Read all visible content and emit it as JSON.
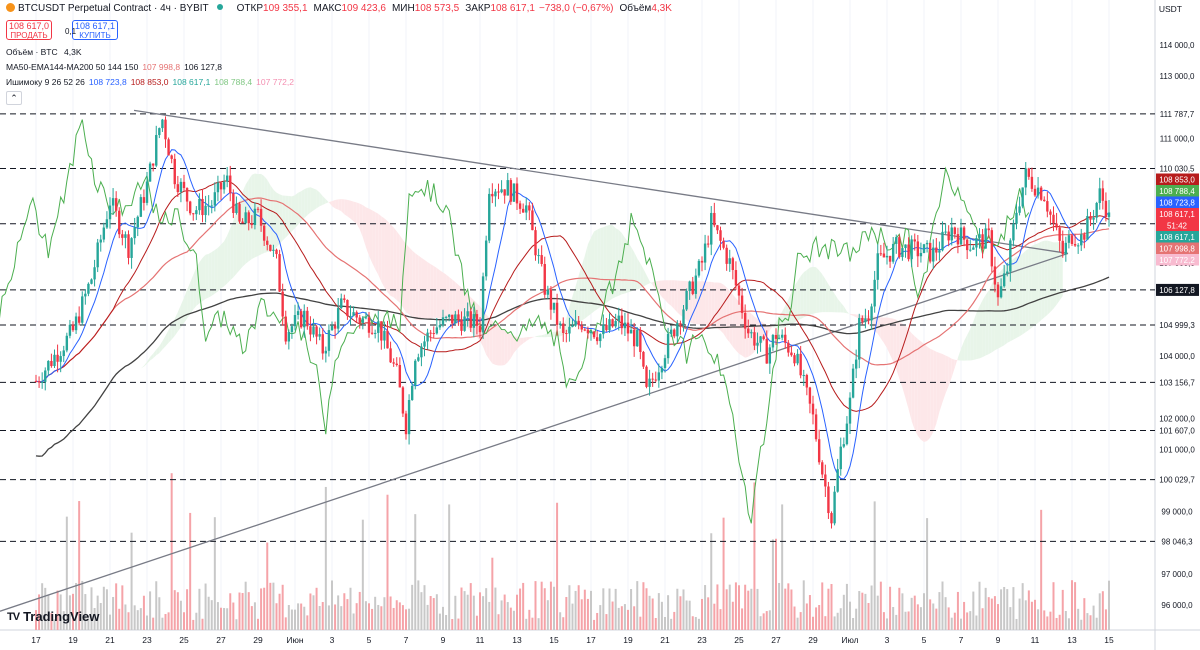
{
  "header": {
    "title": "BTCUSDT Perpetual Contract · 4ч · BYBIT",
    "open_label": "ОТКР",
    "open": "109 355,1",
    "high_label": "МАКС",
    "high": "109 423,6",
    "low_label": "МИН",
    "low": "108 573,5",
    "close_label": "ЗАКР",
    "close": "108 617,1",
    "change": "−738,0 (−0,67%)",
    "volume_label": "Объём",
    "volume": "4,3K"
  },
  "trade": {
    "sell_price": "108 617,0",
    "sell_label": "ПРОДАТЬ",
    "spread": "0,1",
    "buy_price": "108 617,1",
    "buy_label": "КУПИТЬ"
  },
  "indicators": {
    "volume_legend": "Объём · BTC",
    "volume_value": "4,3K",
    "ma_legend": "MA50-EMA144-MA200 50 144 150",
    "ma_v1": "107 998,8",
    "ma_v2": "106 127,8",
    "ichimoku_legend": "Ишимоку 9 26 52 26",
    "ich_v1": "108 723,8",
    "ich_v2": "108 853,0",
    "ich_v3": "108 617,1",
    "ich_v4": "108 788,4",
    "ich_v5": "107 772,2"
  },
  "currency": "USDT",
  "logo_text": "TradingView",
  "colors": {
    "up": "#26a69a",
    "down": "#f23645",
    "kumo_up": "#e8f5e9",
    "kumo_down": "#fde7e9",
    "ma50": "#e57373",
    "ma200": "#424242",
    "tenkan": "#2962ff",
    "kijun": "#b71c1c",
    "chikou": "#4caf50"
  },
  "chart_data": {
    "type": "candlestick",
    "timeframe": "4ч",
    "x_tick_labels": [
      "17",
      "19",
      "21",
      "23",
      "25",
      "27",
      "29",
      "Июн",
      "3",
      "5",
      "7",
      "9",
      "11",
      "13",
      "15",
      "17",
      "19",
      "21",
      "23",
      "25",
      "27",
      "29",
      "Июл",
      "3",
      "5",
      "7",
      "9",
      "11",
      "13",
      "15"
    ],
    "y_tick_labels": [
      "114 000,0",
      "113 000,0",
      "111 000,0",
      "107 000,0",
      "104 000,0",
      "102 000,0",
      "101 000,0",
      "99 000,0",
      "97 000,0",
      "96 000,0"
    ],
    "ylim": [
      95500,
      114800
    ],
    "horizontal_levels": [
      111787.7,
      110030.5,
      108253.5,
      106127.8,
      104999.3,
      103156.7,
      101607.0,
      100029.7,
      98046.3
    ],
    "level_labels": [
      "111 787,7",
      "110 030,5",
      "108 253,5",
      "106 127,8",
      "104 999,3",
      "103 156,7",
      "101 607,0",
      "100 029,7",
      "98 046,3"
    ],
    "price_tags": [
      {
        "text": "108 853,0",
        "color": "#b71c1c"
      },
      {
        "text": "108 788,4",
        "color": "#4caf50"
      },
      {
        "text": "108 723,8",
        "color": "#2962ff"
      },
      {
        "text": "108 617,1",
        "color": "#f23645"
      },
      {
        "text": "51:42",
        "color": "#f23645"
      },
      {
        "text": "108 617,1",
        "color": "#26a69a"
      },
      {
        "text": "107 998,8",
        "color": "#e57373"
      },
      {
        "text": "107 772,2",
        "color": "#f8bbd0"
      }
    ],
    "close_path": [
      {
        "d": 0,
        "c": 103200
      },
      {
        "d": 2,
        "c": 104800
      },
      {
        "d": 3,
        "c": 106500
      },
      {
        "d": 4,
        "c": 109000
      },
      {
        "d": 5,
        "c": 107500
      },
      {
        "d": 6,
        "c": 109500
      },
      {
        "d": 6.8,
        "c": 111700
      },
      {
        "d": 7.5,
        "c": 109800
      },
      {
        "d": 8.5,
        "c": 108700
      },
      {
        "d": 9.5,
        "c": 108900
      },
      {
        "d": 10.3,
        "c": 109700
      },
      {
        "d": 11,
        "c": 108200
      },
      {
        "d": 12,
        "c": 108500
      },
      {
        "d": 13,
        "c": 107000
      },
      {
        "d": 13.5,
        "c": 104800
      },
      {
        "d": 14.5,
        "c": 105300
      },
      {
        "d": 15.5,
        "c": 104200
      },
      {
        "d": 16.5,
        "c": 105600
      },
      {
        "d": 17.5,
        "c": 105200
      },
      {
        "d": 18.5,
        "c": 105000
      },
      {
        "d": 19.5,
        "c": 103400
      },
      {
        "d": 20,
        "c": 101800
      },
      {
        "d": 20.5,
        "c": 104100
      },
      {
        "d": 21.5,
        "c": 104900
      },
      {
        "d": 22.5,
        "c": 105200
      },
      {
        "d": 23.5,
        "c": 105100
      },
      {
        "d": 24,
        "c": 105000
      },
      {
        "d": 24.5,
        "c": 109500
      },
      {
        "d": 25.5,
        "c": 109400
      },
      {
        "d": 26.5,
        "c": 108800
      },
      {
        "d": 27.5,
        "c": 106200
      },
      {
        "d": 28.5,
        "c": 104600
      },
      {
        "d": 29.5,
        "c": 105100
      },
      {
        "d": 30.5,
        "c": 104700
      },
      {
        "d": 31.5,
        "c": 105100
      },
      {
        "d": 32.5,
        "c": 104500
      },
      {
        "d": 33,
        "c": 102800
      },
      {
        "d": 34,
        "c": 104200
      },
      {
        "d": 35,
        "c": 105600
      },
      {
        "d": 36,
        "c": 107000
      },
      {
        "d": 36.5,
        "c": 108300
      },
      {
        "d": 37.5,
        "c": 107000
      },
      {
        "d": 38.5,
        "c": 104800
      },
      {
        "d": 39.5,
        "c": 104100
      },
      {
        "d": 40,
        "c": 104700
      },
      {
        "d": 41,
        "c": 104100
      },
      {
        "d": 42,
        "c": 102000
      },
      {
        "d": 42.5,
        "c": 100300
      },
      {
        "d": 43,
        "c": 98800
      },
      {
        "d": 43.5,
        "c": 101000
      },
      {
        "d": 44,
        "c": 102500
      },
      {
        "d": 44.5,
        "c": 105000
      },
      {
        "d": 45,
        "c": 105400
      },
      {
        "d": 45.5,
        "c": 107000
      },
      {
        "d": 46.5,
        "c": 107500
      },
      {
        "d": 47.5,
        "c": 107400
      },
      {
        "d": 48.5,
        "c": 107300
      },
      {
        "d": 49.5,
        "c": 108100
      },
      {
        "d": 50.5,
        "c": 107600
      },
      {
        "d": 51.5,
        "c": 107800
      },
      {
        "d": 52,
        "c": 105800
      },
      {
        "d": 52.5,
        "c": 106800
      },
      {
        "d": 53,
        "c": 108700
      },
      {
        "d": 53.5,
        "c": 109800
      },
      {
        "d": 54.5,
        "c": 109200
      },
      {
        "d": 55,
        "c": 108200
      },
      {
        "d": 55.5,
        "c": 107300
      },
      {
        "d": 56,
        "c": 107900
      },
      {
        "d": 56.5,
        "c": 107800
      },
      {
        "d": 57,
        "c": 108400
      },
      {
        "d": 57.5,
        "c": 109200
      },
      {
        "d": 58,
        "c": 108617.1
      }
    ]
  }
}
